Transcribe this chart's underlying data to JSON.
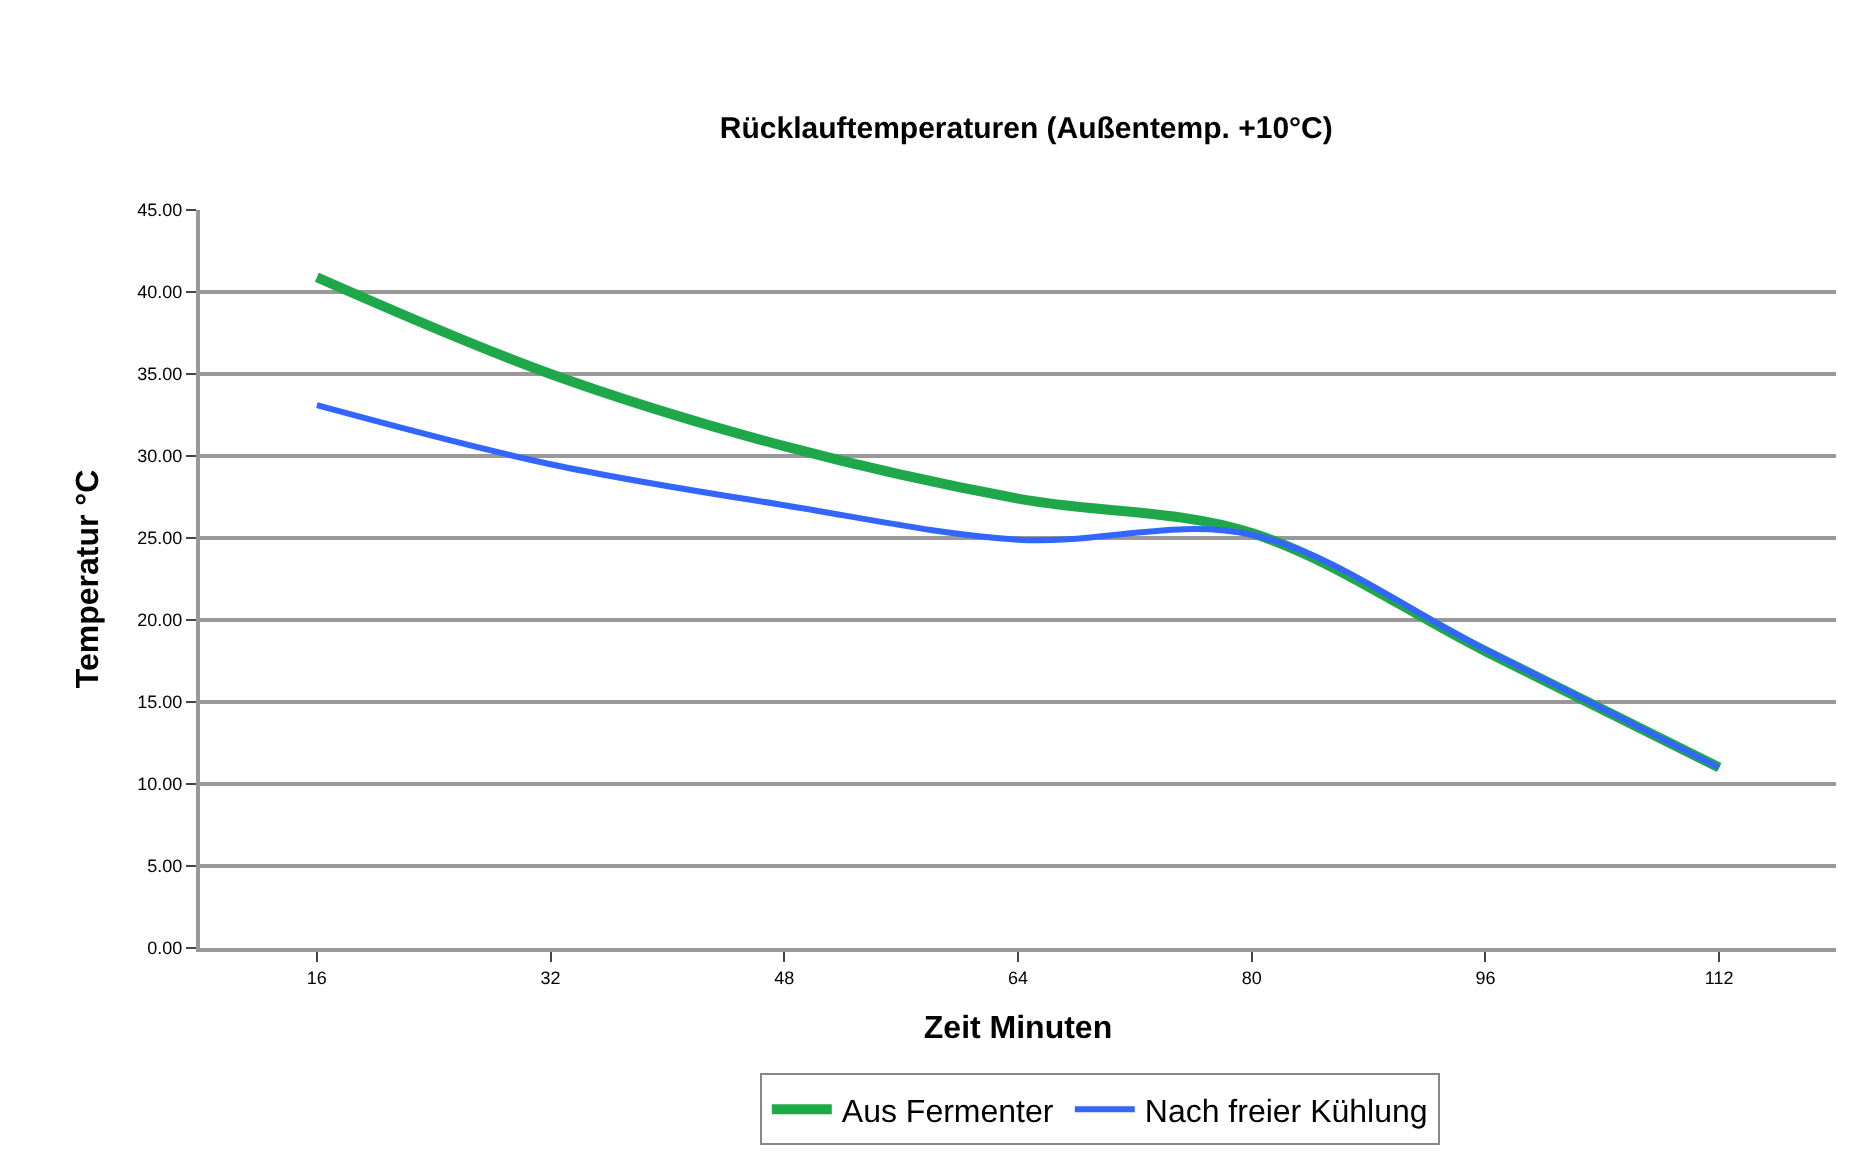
{
  "chart_data": {
    "type": "line",
    "title": "Rücklauftemperaturen (Außentemp. +10°C)",
    "xlabel": "Zeit Minuten",
    "ylabel": "Temperatur °C",
    "categories": [
      "16",
      "32",
      "48",
      "64",
      "80",
      "96",
      "112"
    ],
    "series": [
      {
        "name": "Aus Fermenter",
        "color": "#1fa84a",
        "values": [
          40.9,
          35.0,
          30.6,
          27.4,
          25.3,
          18.1,
          11.0
        ]
      },
      {
        "name": "Nach freier Kühlung",
        "color": "#3366ff",
        "values": [
          33.1,
          29.5,
          27.0,
          24.9,
          25.2,
          18.2,
          11.0
        ]
      }
    ],
    "ylim": [
      0,
      45
    ],
    "yticks": [
      {
        "value": 0,
        "label": "0.00"
      },
      {
        "value": 5,
        "label": "5.00"
      },
      {
        "value": 10,
        "label": "10.00"
      },
      {
        "value": 15,
        "label": "15.00"
      },
      {
        "value": 20,
        "label": "20.00"
      },
      {
        "value": 25,
        "label": "25.00"
      },
      {
        "value": 30,
        "label": "30.00"
      },
      {
        "value": 35,
        "label": "35.00"
      },
      {
        "value": 40,
        "label": "40.00"
      },
      {
        "value": 45,
        "label": "45.00"
      }
    ],
    "grid": "y",
    "legend": "bottom",
    "marker": "none",
    "line_style": "solid"
  }
}
